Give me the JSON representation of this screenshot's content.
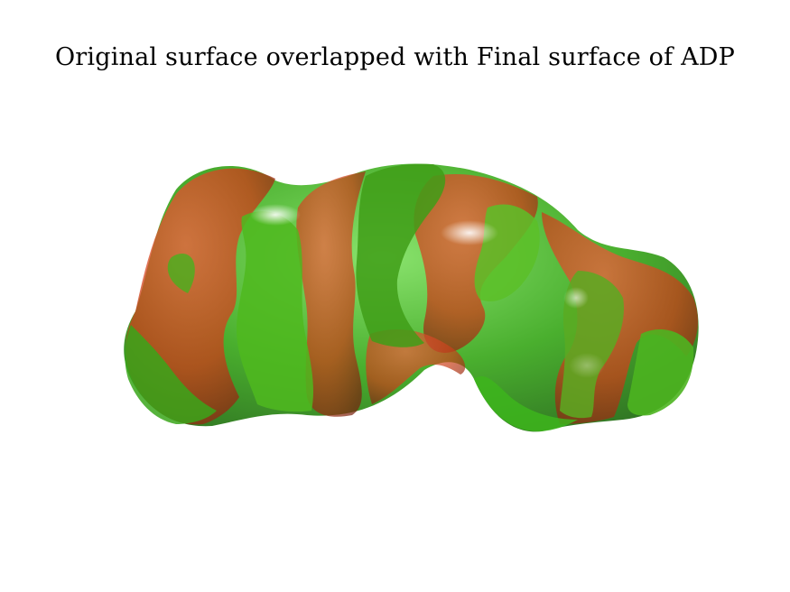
{
  "figure": {
    "title": "Original surface overlapped with Final surface of ADP"
  },
  "colors": {
    "original_surface": "#d92a1e",
    "final_surface": "#33bb1a",
    "overlap": "#8a6a10",
    "background": "#ffffff"
  }
}
